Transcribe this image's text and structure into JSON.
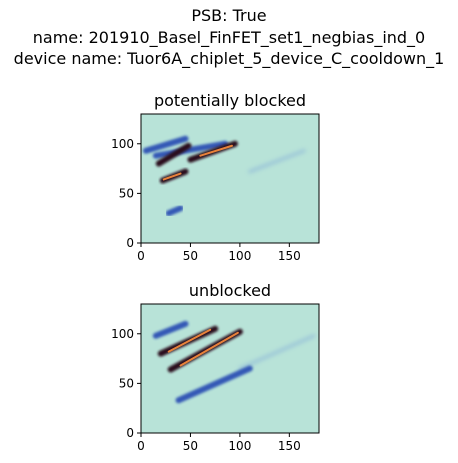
{
  "suptitle": {
    "line1": "PSB: True",
    "line2": "name: 201910_Basel_FinFET_set1_negbias_ind_0",
    "line3": "device name: Tuor6A_chiplet_5_device_C_cooldown_1"
  },
  "colors": {
    "background": "#b8e3d8",
    "ridge_blue": "#1f3fb0",
    "ridge_dark": "#2a0b1e",
    "ridge_hot": "#e8823a"
  },
  "chart_data": [
    {
      "type": "heatmap",
      "title": "potentially blocked",
      "xlabel": "",
      "ylabel": "",
      "xlim": [
        0,
        180
      ],
      "ylim": [
        0,
        130
      ],
      "xticks": [
        0,
        50,
        100,
        150
      ],
      "yticks": [
        0,
        50,
        100
      ],
      "grid": false,
      "ridges": [
        {
          "kind": "faint",
          "from": [
            110,
            72
          ],
          "to": [
            165,
            93
          ]
        },
        {
          "kind": "blue",
          "from": [
            5,
            93
          ],
          "to": [
            45,
            105
          ]
        },
        {
          "kind": "blue",
          "from": [
            15,
            88
          ],
          "to": [
            85,
            100
          ]
        },
        {
          "kind": "dark",
          "from": [
            18,
            80
          ],
          "to": [
            48,
            98
          ]
        },
        {
          "kind": "dark",
          "from": [
            50,
            84
          ],
          "to": [
            95,
            100
          ]
        },
        {
          "kind": "dark",
          "from": [
            22,
            63
          ],
          "to": [
            45,
            72
          ]
        },
        {
          "kind": "hot",
          "from": [
            60,
            88
          ],
          "to": [
            92,
            98
          ]
        },
        {
          "kind": "hot",
          "from": [
            23,
            64
          ],
          "to": [
            40,
            70
          ]
        },
        {
          "kind": "blue",
          "from": [
            28,
            30
          ],
          "to": [
            40,
            35
          ]
        }
      ]
    },
    {
      "type": "heatmap",
      "title": "unblocked",
      "xlabel": "",
      "ylabel": "",
      "xlim": [
        0,
        180
      ],
      "ylim": [
        0,
        130
      ],
      "xticks": [
        0,
        50,
        100,
        150
      ],
      "yticks": [
        0,
        50,
        100
      ],
      "grid": false,
      "ridges": [
        {
          "kind": "faint",
          "from": [
            100,
            65
          ],
          "to": [
            175,
            98
          ]
        },
        {
          "kind": "blue",
          "from": [
            38,
            33
          ],
          "to": [
            110,
            65
          ]
        },
        {
          "kind": "blue",
          "from": [
            15,
            98
          ],
          "to": [
            45,
            110
          ]
        },
        {
          "kind": "dark",
          "from": [
            20,
            80
          ],
          "to": [
            75,
            105
          ]
        },
        {
          "kind": "dark",
          "from": [
            30,
            64
          ],
          "to": [
            100,
            102
          ]
        },
        {
          "kind": "hot",
          "from": [
            28,
            82
          ],
          "to": [
            70,
            104
          ]
        },
        {
          "kind": "hot",
          "from": [
            40,
            68
          ],
          "to": [
            98,
            101
          ]
        }
      ]
    }
  ]
}
